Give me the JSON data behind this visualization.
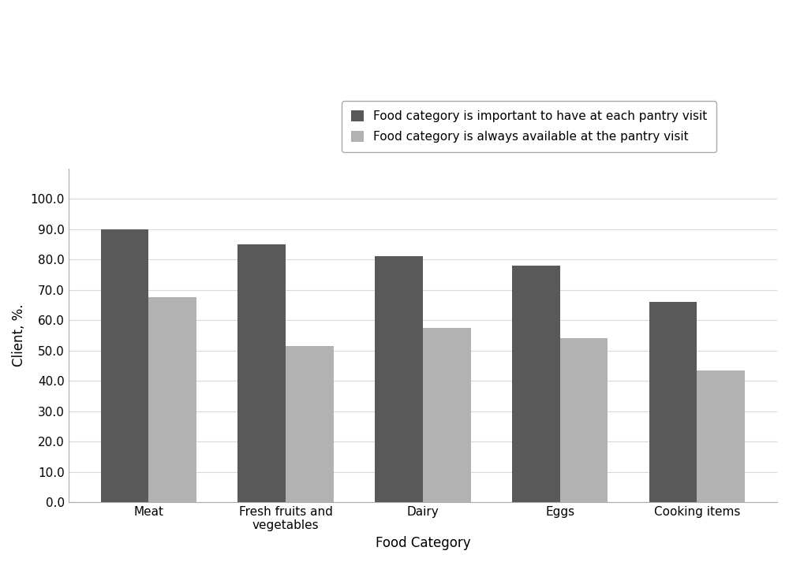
{
  "categories": [
    "Meat",
    "Fresh fruits and\nvegetables",
    "Dairy",
    "Eggs",
    "Cooking items"
  ],
  "important_values": [
    90.0,
    85.0,
    81.0,
    78.0,
    66.0
  ],
  "available_values": [
    67.5,
    51.5,
    57.5,
    54.0,
    43.5
  ],
  "important_color": "#595959",
  "available_color": "#b2b2b2",
  "important_label": "Food category is important to have at each pantry visit",
  "available_label": "Food category is always available at the pantry visit",
  "xlabel": "Food Category",
  "ylabel": "Client, %.",
  "ylim": [
    0,
    110
  ],
  "yticks": [
    0.0,
    10.0,
    20.0,
    30.0,
    40.0,
    50.0,
    60.0,
    70.0,
    80.0,
    90.0,
    100.0
  ],
  "bar_width": 0.35,
  "background_color": "#ffffff",
  "grid_color": "#d9d9d9",
  "legend_fontsize": 11,
  "axis_fontsize": 12,
  "tick_fontsize": 11
}
